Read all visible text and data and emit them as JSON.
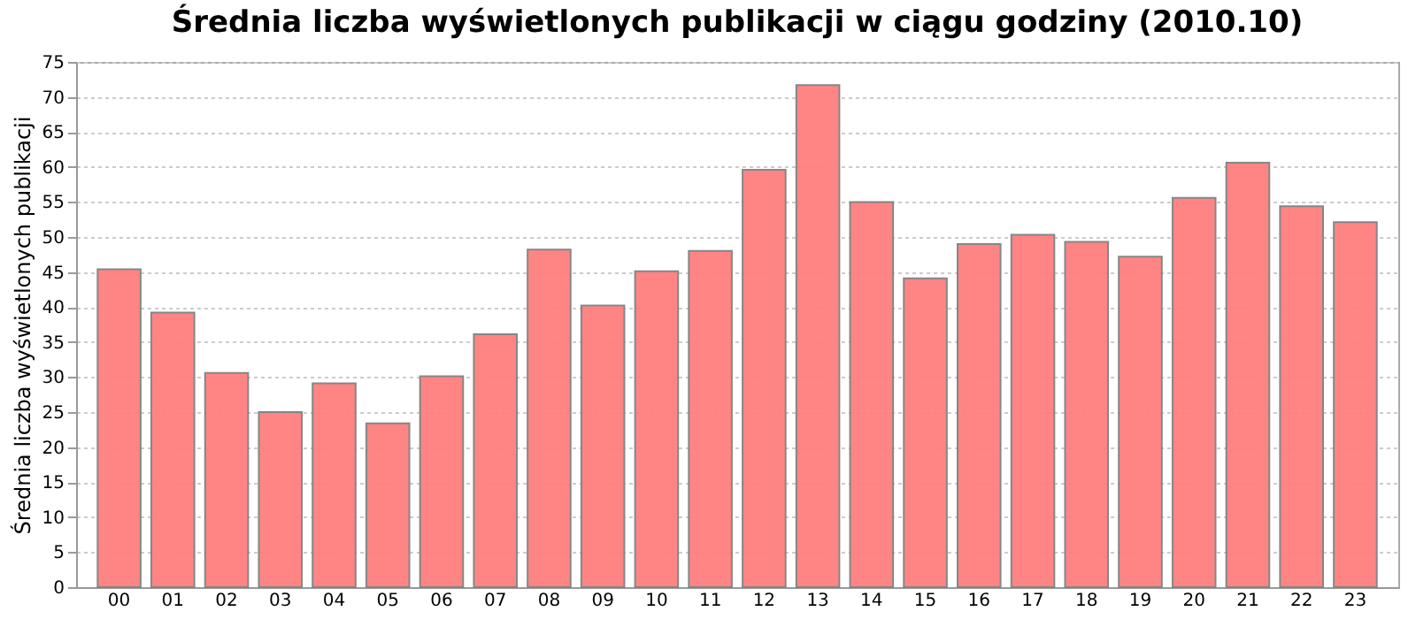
{
  "chart_data": {
    "type": "bar",
    "title": "Średnia liczba wyświetlonych publikacji w ciągu godziny (2010.10)",
    "ylabel": "Średnia liczba wyświetlonych publikacji",
    "categories": [
      "00",
      "01",
      "02",
      "03",
      "04",
      "05",
      "06",
      "07",
      "08",
      "09",
      "10",
      "11",
      "12",
      "13",
      "14",
      "15",
      "16",
      "17",
      "18",
      "19",
      "20",
      "21",
      "22",
      "23"
    ],
    "values": [
      45.4,
      39.2,
      30.6,
      25.0,
      29.1,
      23.4,
      30.1,
      36.1,
      48.2,
      40.2,
      45.1,
      48.0,
      59.6,
      71.7,
      55.0,
      44.1,
      49.0,
      50.3,
      49.3,
      47.2,
      55.6,
      60.6,
      54.4,
      52.1
    ],
    "color": "#ff7f7f",
    "ylim": [
      0,
      75
    ],
    "yticks": [
      0,
      5,
      10,
      15,
      20,
      25,
      30,
      35,
      40,
      45,
      50,
      55,
      60,
      65,
      70,
      75
    ],
    "grid": "y"
  }
}
